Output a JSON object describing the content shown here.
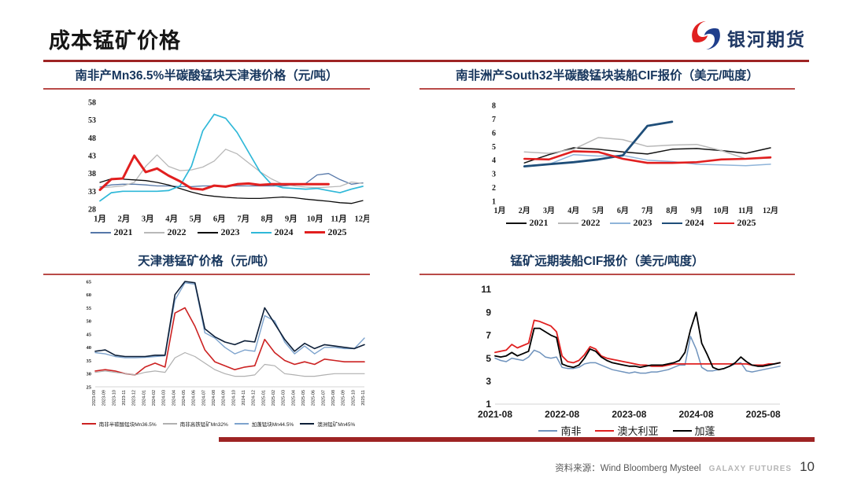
{
  "header": {
    "title": "成本锰矿价格",
    "logo_text": "银河期货"
  },
  "footer": {
    "source": "资料来源：Wind Bloomberg Mysteel",
    "brand": "GALAXY FUTURES",
    "page": "10"
  },
  "chart_data": [
    {
      "type": "line",
      "title": "南非产Mn36.5%半碳酸锰块天津港价格（元/吨）",
      "ylabel": "元/吨",
      "ylim": [
        28,
        58
      ],
      "yticks": [
        28,
        33,
        38,
        43,
        48,
        53,
        58
      ],
      "x_slots": 24,
      "x_labels": [
        "1月",
        "2月",
        "3月",
        "4月",
        "5月",
        "6月",
        "7月",
        "8月",
        "9月",
        "10月",
        "11月",
        "12月"
      ],
      "series": [
        {
          "name": "2021",
          "color": "#5577a8",
          "width": 1.3,
          "values": [
            34.2,
            34.8,
            35.0,
            35.0,
            34.8,
            34.5,
            34.5,
            34.3,
            34.3,
            34.5,
            34.5,
            34.5,
            34.5,
            34.5,
            34.5,
            34.5,
            34.5,
            34.8,
            35.2,
            37.6,
            38.0,
            36.3,
            35.0,
            35.4
          ]
        },
        {
          "name": "2022",
          "color": "#b8b8b8",
          "width": 1.3,
          "values": [
            34.0,
            34.2,
            34.5,
            35.5,
            40.0,
            43.2,
            40.0,
            38.8,
            39.0,
            39.8,
            41.5,
            44.8,
            43.5,
            41.0,
            38.5,
            36.5,
            35.0,
            34.5,
            34.2,
            34.0,
            34.2,
            34.4,
            35.6,
            35.2
          ]
        },
        {
          "name": "2023",
          "color": "#0a0a0a",
          "width": 1.3,
          "values": [
            35.5,
            36.5,
            36.4,
            36.2,
            36.0,
            35.5,
            34.8,
            33.8,
            32.8,
            32.0,
            31.6,
            31.3,
            31.1,
            31.0,
            31.0,
            31.2,
            31.4,
            31.2,
            30.8,
            30.5,
            30.2,
            29.8,
            29.6,
            30.4
          ]
        },
        {
          "name": "2024",
          "color": "#2fb8d8",
          "width": 1.7,
          "values": [
            30.3,
            32.6,
            33.0,
            33.0,
            33.0,
            33.0,
            33.2,
            34.5,
            40.0,
            50.0,
            54.6,
            53.5,
            49.5,
            44.0,
            38.5,
            35.0,
            34.0,
            33.8,
            33.6,
            33.8,
            33.2,
            32.6,
            33.6,
            34.4
          ]
        },
        {
          "name": "2025",
          "color": "#e11f1f",
          "width": 3,
          "values": [
            33.4,
            36.4,
            36.6,
            43.0,
            38.4,
            39.4,
            37.4,
            35.8,
            33.8,
            33.5,
            34.6,
            34.3,
            35.0,
            35.2,
            34.8,
            35.0,
            35.0,
            35.0,
            35.0,
            35.0,
            35.0
          ]
        }
      ]
    },
    {
      "type": "line",
      "title": "南非洲产South32半碳酸锰块装船CIF报价（美元/吨度）",
      "ylabel": "美元/吨度",
      "ylim": [
        1,
        8
      ],
      "yticks": [
        1,
        2,
        3,
        4,
        5,
        6,
        7,
        8
      ],
      "x_slots": 12,
      "x_labels": [
        "1月",
        "2月",
        "3月",
        "4月",
        "5月",
        "6月",
        "7月",
        "8月",
        "9月",
        "10月",
        "11月",
        "12月"
      ],
      "series": [
        {
          "name": "2021",
          "color": "#111111",
          "width": 1.5,
          "values": [
            null,
            3.8,
            4.4,
            4.9,
            4.8,
            4.6,
            4.45,
            4.8,
            4.85,
            4.7,
            4.5,
            4.9
          ]
        },
        {
          "name": "2022",
          "color": "#b8b8b8",
          "width": 1.5,
          "values": [
            null,
            4.6,
            4.5,
            4.8,
            5.65,
            5.5,
            5.0,
            5.1,
            5.15,
            4.7,
            4.1,
            4.15
          ]
        },
        {
          "name": "2023",
          "color": "#8fb4d9",
          "width": 1.5,
          "values": [
            null,
            3.6,
            3.7,
            4.4,
            4.3,
            4.35,
            4.0,
            3.9,
            3.7,
            3.65,
            3.6,
            3.7
          ]
        },
        {
          "name": "2024",
          "color": "#1f4e79",
          "width": 2.8,
          "values": [
            null,
            3.55,
            3.7,
            3.85,
            4.05,
            4.35,
            6.5,
            6.8
          ]
        },
        {
          "name": "2025",
          "color": "#e11f1f",
          "width": 2.6,
          "values": [
            null,
            4.1,
            4.05,
            4.65,
            4.6,
            4.1,
            3.8,
            3.8,
            3.85,
            4.05,
            4.1,
            4.2
          ]
        }
      ]
    },
    {
      "type": "line",
      "title": "天津港锰矿价格（元/吨）",
      "ylabel": "元/吨",
      "ylim": [
        25,
        65
      ],
      "yticks": [
        25,
        30,
        35,
        40,
        45,
        50,
        55,
        60,
        65
      ],
      "x_slots": 28,
      "x_labels": [
        "2023-08",
        "2023-09",
        "2023-10",
        "2023-11",
        "2023-12",
        "2024-01",
        "2024-02",
        "2024-03",
        "2024-04",
        "2024-05",
        "2024-06",
        "2024-07",
        "2024-08",
        "2024-09",
        "2024-10",
        "2024-11",
        "2024-12",
        "2025-01",
        "2025-02",
        "2025-03",
        "2025-04",
        "2025-05",
        "2025-06",
        "2025-07",
        "2025-08",
        "2025-09",
        "2025-10",
        "2025-11"
      ],
      "series": [
        {
          "name": "南非半碳酸锰块Mn36.5%",
          "color": "#cc2222",
          "width": 1.6,
          "values": [
            31,
            31.5,
            31,
            30,
            29.5,
            32.5,
            34,
            32.5,
            53,
            55,
            48,
            39,
            34.5,
            33,
            31.5,
            32.5,
            33,
            43,
            38,
            35,
            33.5,
            34.5,
            33.5,
            35.5,
            35,
            34.5,
            34.5,
            34.5
          ]
        },
        {
          "name": "南非高铁锰矿Mn32%",
          "color": "#b0b0b0",
          "width": 1.2,
          "values": [
            30.5,
            31,
            30.5,
            30,
            29.5,
            30.5,
            31,
            30.5,
            36,
            38,
            36.5,
            34,
            31.5,
            30,
            29,
            29,
            29.5,
            33.5,
            33,
            30,
            29.5,
            29,
            29,
            29.5,
            30,
            30,
            30,
            30
          ]
        },
        {
          "name": "加蓬锰块Mn44.5%",
          "color": "#7da3cd",
          "width": 1.4,
          "values": [
            38,
            37.5,
            36.5,
            36,
            36,
            36.2,
            36.5,
            36.8,
            58,
            64.5,
            64,
            45.5,
            43.5,
            40,
            37.5,
            39,
            38.5,
            52,
            50,
            42,
            37.5,
            40.5,
            37.5,
            40,
            40,
            39.5,
            39.5,
            43.5
          ]
        },
        {
          "name": "澳洲锰矿Mn45%",
          "color": "#0d1f38",
          "width": 1.6,
          "values": [
            38.5,
            39,
            37,
            36.5,
            36.5,
            36.5,
            37,
            37,
            60,
            65,
            64.5,
            47,
            44,
            42,
            41,
            42.5,
            42,
            55,
            49,
            43,
            38.5,
            41.5,
            39.5,
            41,
            40.5,
            40,
            39.5,
            41
          ]
        }
      ]
    },
    {
      "type": "line",
      "title": "锰矿远期装船CIF报价（美元/吨度）",
      "ylabel": "美元/吨度",
      "ylim": [
        1,
        11
      ],
      "yticks": [
        1,
        3,
        5,
        7,
        9,
        11
      ],
      "x_slots": 52,
      "x_labels": [
        "2021-08",
        "2022-08",
        "2023-08",
        "2024-08",
        "2025-08"
      ],
      "x_label_idx": [
        0,
        12,
        24,
        36,
        48
      ],
      "series": [
        {
          "name": "南非",
          "color": "#6f93bd",
          "width": 1.5,
          "values": [
            5.0,
            4.8,
            4.7,
            5.0,
            4.9,
            4.8,
            5.1,
            5.7,
            5.5,
            5.1,
            5.0,
            5.1,
            4.2,
            4.1,
            4.1,
            4.2,
            4.5,
            4.6,
            4.6,
            4.4,
            4.2,
            4.0,
            3.9,
            3.8,
            3.7,
            3.8,
            3.7,
            3.7,
            3.8,
            3.8,
            3.9,
            4.0,
            4.2,
            4.4,
            4.4,
            6.9,
            5.8,
            4.2,
            3.9,
            3.9,
            4.0,
            4.1,
            4.3,
            4.5,
            4.6,
            3.9,
            3.8,
            3.9,
            4.0,
            4.1,
            4.2,
            4.3
          ]
        },
        {
          "name": "澳大利亚",
          "color": "#e02020",
          "width": 1.8,
          "values": [
            5.5,
            5.6,
            5.7,
            6.2,
            5.9,
            6.1,
            6.3,
            8.3,
            8.2,
            8.0,
            7.8,
            7.3,
            5.2,
            4.7,
            4.6,
            4.8,
            5.3,
            6.0,
            5.8,
            5.2,
            5.0,
            4.9,
            4.8,
            4.7,
            4.6,
            4.5,
            4.4,
            4.4,
            4.3,
            4.3,
            4.3,
            4.4,
            4.5,
            4.5,
            4.5,
            4.5,
            4.5,
            4.5,
            4.5,
            4.5,
            4.5,
            4.5,
            4.5,
            4.5,
            4.5,
            4.5,
            4.4,
            4.4,
            4.4,
            4.5,
            4.5,
            4.6
          ]
        },
        {
          "name": "加蓬",
          "color": "#000000",
          "width": 1.8,
          "values": [
            5.2,
            5.1,
            5.2,
            5.5,
            5.2,
            5.4,
            5.6,
            7.6,
            7.6,
            7.3,
            7.0,
            6.8,
            4.5,
            4.3,
            4.2,
            4.4,
            5.0,
            5.8,
            5.6,
            5.1,
            4.8,
            4.6,
            4.5,
            4.4,
            4.3,
            4.3,
            4.2,
            4.3,
            4.4,
            4.4,
            4.4,
            4.5,
            4.6,
            4.8,
            5.5,
            7.5,
            9.0,
            6.3,
            5.3,
            4.2,
            4.0,
            4.1,
            4.3,
            4.6,
            5.1,
            4.7,
            4.4,
            4.3,
            4.3,
            4.4,
            4.5,
            4.6
          ]
        }
      ]
    }
  ]
}
